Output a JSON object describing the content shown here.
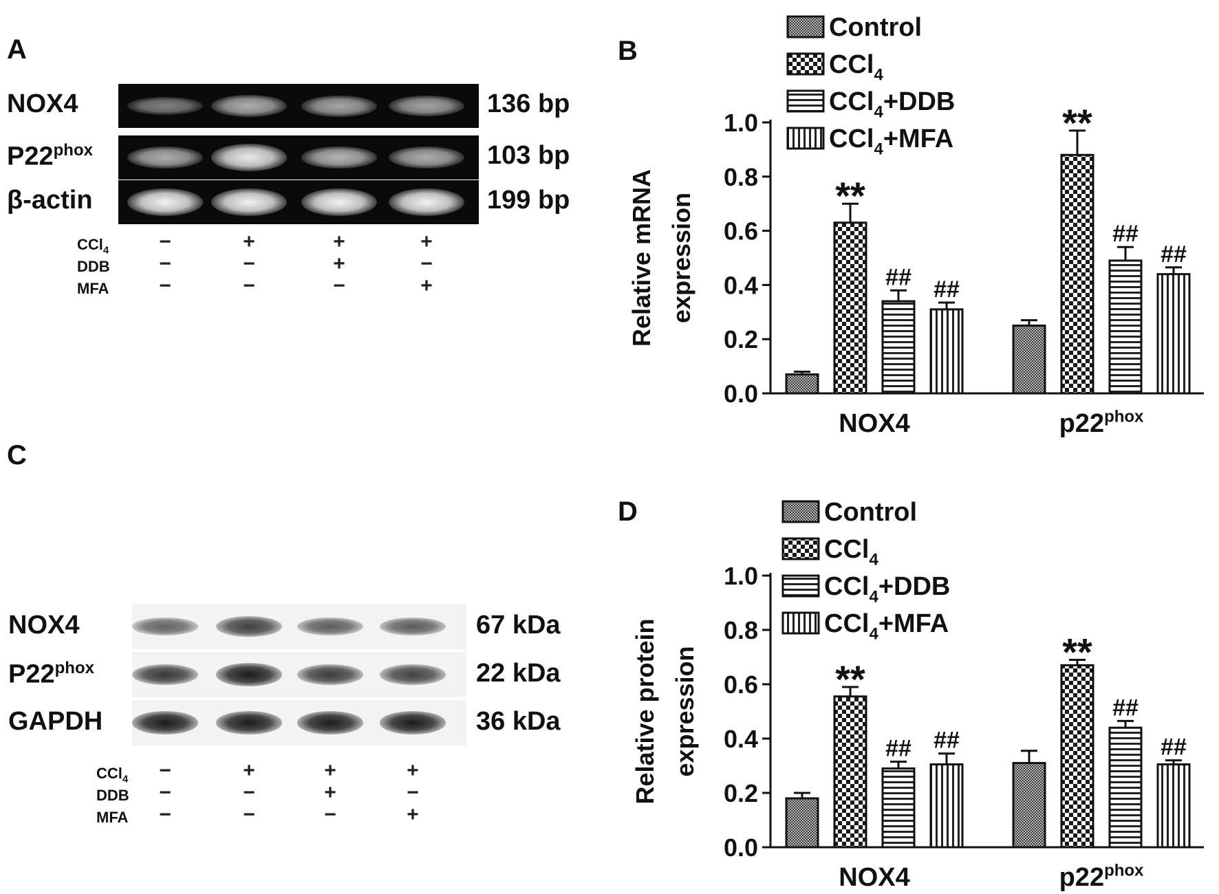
{
  "panel_a": {
    "letter": "A",
    "rows": [
      {
        "label": "NOX4",
        "sup": "",
        "size": "136 bp",
        "intensity": [
          0.25,
          0.55,
          0.5,
          0.48
        ]
      },
      {
        "label": "P22",
        "sup": "phox",
        "size": "103 bp",
        "intensity": [
          0.55,
          0.95,
          0.6,
          0.55
        ]
      },
      {
        "label": "β-actin",
        "sup": "",
        "size": "199 bp",
        "intensity": [
          1.0,
          1.0,
          1.0,
          1.0
        ]
      }
    ],
    "treatments": [
      {
        "name": "CCl",
        "sub": "4",
        "signs": [
          "−",
          "+",
          "+",
          "+"
        ]
      },
      {
        "name": "DDB",
        "sub": "",
        "signs": [
          "−",
          "−",
          "+",
          "−"
        ]
      },
      {
        "name": "MFA",
        "sub": "",
        "signs": [
          "−",
          "−",
          "−",
          "+"
        ]
      }
    ]
  },
  "panel_c": {
    "letter": "C",
    "rows": [
      {
        "label": "NOX4",
        "sup": "",
        "size": "67 kDa",
        "intensity": [
          0.45,
          0.7,
          0.5,
          0.5
        ]
      },
      {
        "label": "P22",
        "sup": "phox",
        "size": "22 kDa",
        "intensity": [
          0.75,
          0.95,
          0.72,
          0.68
        ]
      },
      {
        "label": "GAPDH",
        "sup": "",
        "size": "36 kDa",
        "intensity": [
          0.95,
          0.95,
          0.95,
          0.95
        ]
      }
    ],
    "treatments": [
      {
        "name": "CCl",
        "sub": "4",
        "signs": [
          "−",
          "+",
          "+",
          "+"
        ]
      },
      {
        "name": "DDB",
        "sub": "",
        "signs": [
          "−",
          "−",
          "+",
          "−"
        ]
      },
      {
        "name": "MFA",
        "sub": "",
        "signs": [
          "−",
          "−",
          "−",
          "+"
        ]
      }
    ]
  },
  "chart_data": [
    {
      "panel": "B",
      "type": "bar",
      "ylabel": [
        "Relative mRNA",
        "expression"
      ],
      "ylim": [
        0,
        1.0
      ],
      "yticks": [
        "0.0",
        "0.2",
        "0.4",
        "0.6",
        "0.8",
        "1.0"
      ],
      "categories": [
        {
          "text": "NOX4",
          "sup": ""
        },
        {
          "text": "p22",
          "sup": "phox"
        }
      ],
      "legend_position": "top",
      "series": [
        {
          "name": "Control",
          "sub": "",
          "suffix": "",
          "pattern": "dots",
          "values": [
            0.07,
            0.25
          ],
          "errors": [
            0.01,
            0.02
          ],
          "annotations": [
            "",
            ""
          ]
        },
        {
          "name": "CCl",
          "sub": "4",
          "suffix": "",
          "pattern": "checker",
          "values": [
            0.63,
            0.88
          ],
          "errors": [
            0.07,
            0.09
          ],
          "annotations": [
            "**",
            "**"
          ]
        },
        {
          "name": "CCl",
          "sub": "4",
          "suffix": "+DDB",
          "pattern": "hlines",
          "values": [
            0.34,
            0.49
          ],
          "errors": [
            0.04,
            0.05
          ],
          "annotations": [
            "##",
            "##"
          ]
        },
        {
          "name": "CCl",
          "sub": "4",
          "suffix": "+MFA",
          "pattern": "vlines",
          "values": [
            0.31,
            0.44
          ],
          "errors": [
            0.025,
            0.025
          ],
          "annotations": [
            "##",
            "##"
          ]
        }
      ]
    },
    {
      "panel": "D",
      "type": "bar",
      "ylabel": [
        "Relative protein",
        "expression"
      ],
      "ylim": [
        0,
        1.0
      ],
      "yticks": [
        "0.0",
        "0.2",
        "0.4",
        "0.6",
        "0.8",
        "1.0"
      ],
      "categories": [
        {
          "text": "NOX4",
          "sup": ""
        },
        {
          "text": "p22",
          "sup": "phox"
        }
      ],
      "legend_position": "top",
      "series": [
        {
          "name": "Control",
          "sub": "",
          "suffix": "",
          "pattern": "dots",
          "values": [
            0.18,
            0.31
          ],
          "errors": [
            0.02,
            0.045
          ],
          "annotations": [
            "",
            ""
          ]
        },
        {
          "name": "CCl",
          "sub": "4",
          "suffix": "",
          "pattern": "checker",
          "values": [
            0.555,
            0.67
          ],
          "errors": [
            0.035,
            0.02
          ],
          "annotations": [
            "**",
            "**"
          ]
        },
        {
          "name": "CCl",
          "sub": "4",
          "suffix": "+DDB",
          "pattern": "hlines",
          "values": [
            0.29,
            0.44
          ],
          "errors": [
            0.025,
            0.025
          ],
          "annotations": [
            "##",
            "##"
          ]
        },
        {
          "name": "CCl",
          "sub": "4",
          "suffix": "+MFA",
          "pattern": "vlines",
          "values": [
            0.305,
            0.305
          ],
          "errors": [
            0.04,
            0.015
          ],
          "annotations": [
            "##",
            "##"
          ]
        }
      ]
    }
  ]
}
